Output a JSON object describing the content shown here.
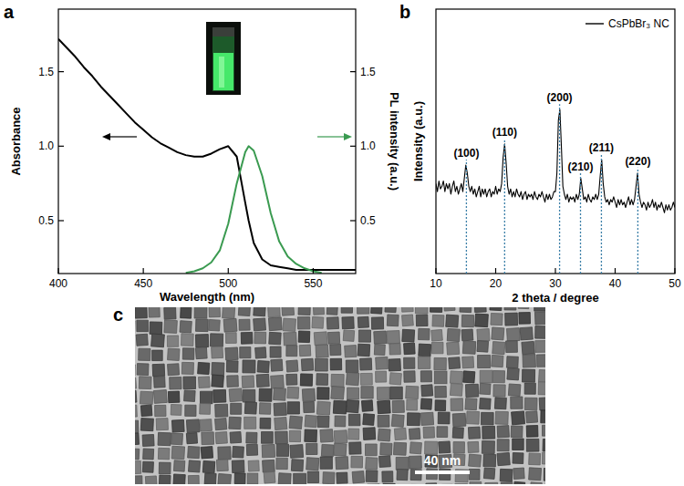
{
  "chart_data": [
    {
      "type": "line",
      "panel": "a",
      "x_label": "Wavelength (nm)",
      "y_label": "Absorbance",
      "y2_label": "PL intensity (a.u.)",
      "xlim": [
        400,
        575
      ],
      "xticks": [
        400,
        450,
        500,
        550
      ],
      "ylim": [
        0.145,
        1.92
      ],
      "yticks": [
        0.5,
        {
          "value": 1,
          "label": "1.0"
        },
        1.5
      ],
      "y2lim": [
        0.145,
        1.92
      ],
      "y2ticks": [
        0.5,
        {
          "value": 1,
          "label": "1.0"
        },
        1.5
      ],
      "x": [
        400,
        405,
        410,
        415,
        420,
        425,
        430,
        435,
        440,
        445,
        450,
        455,
        460,
        465,
        470,
        475,
        480,
        485,
        490,
        495,
        500,
        505,
        510,
        512,
        515,
        520,
        525,
        530,
        535,
        540,
        545,
        550,
        555,
        560,
        565,
        570,
        575
      ],
      "series": [
        {
          "color": "#000000",
          "values": [
            1.72,
            1.66,
            1.6,
            1.53,
            1.47,
            1.4,
            1.34,
            1.28,
            1.22,
            1.16,
            1.11,
            1.06,
            1.02,
            0.99,
            0.96,
            0.94,
            0.93,
            0.93,
            0.95,
            0.98,
            1.0,
            0.93,
            0.62,
            0.5,
            0.35,
            0.24,
            0.2,
            0.19,
            0.18,
            0.17,
            0.17,
            0.17,
            0.17,
            0.17,
            0.17,
            0.17,
            0.17
          ]
        },
        {
          "color": "#3a9a50",
          "axis": "y2",
          "values": [
            null,
            null,
            null,
            null,
            null,
            null,
            null,
            null,
            null,
            null,
            null,
            null,
            null,
            null,
            null,
            0.15,
            0.16,
            0.18,
            0.22,
            0.3,
            0.48,
            0.75,
            0.96,
            1.0,
            0.97,
            0.8,
            0.55,
            0.36,
            0.26,
            0.21,
            0.18,
            0.16,
            0.15,
            null,
            null,
            null,
            null
          ]
        }
      ]
    },
    {
      "type": "line",
      "panel": "b",
      "x_label": "2 theta / degree",
      "y_label": "Intensity (a.u.)",
      "xlim": [
        10,
        50
      ],
      "xticks": [
        10,
        20,
        30,
        40,
        50
      ],
      "ylim": [
        0,
        100
      ],
      "tick_labels": "x",
      "legend": "top-right",
      "x": [
        10,
        10.25,
        10.5,
        10.75,
        11,
        11.25,
        11.5,
        11.75,
        12,
        12.25,
        12.5,
        12.75,
        13,
        13.25,
        13.5,
        13.75,
        14,
        14.25,
        14.5,
        14.75,
        15,
        15.25,
        15.5,
        15.75,
        16,
        16.25,
        16.5,
        16.75,
        17,
        17.25,
        17.5,
        17.75,
        18,
        18.25,
        18.5,
        18.75,
        19,
        19.25,
        19.5,
        19.75,
        20,
        20.25,
        20.5,
        20.75,
        21,
        21.25,
        21.5,
        21.75,
        22,
        22.25,
        22.5,
        22.75,
        23,
        23.25,
        23.5,
        23.75,
        24,
        24.25,
        24.5,
        24.75,
        25,
        25.25,
        25.5,
        25.75,
        26,
        26.25,
        26.5,
        26.75,
        27,
        27.25,
        27.5,
        27.75,
        28,
        28.25,
        28.5,
        28.75,
        29,
        29.25,
        29.5,
        29.75,
        30,
        30.25,
        30.5,
        30.75,
        31,
        31.25,
        31.5,
        31.75,
        32,
        32.25,
        32.5,
        32.75,
        33,
        33.25,
        33.5,
        33.75,
        34,
        34.25,
        34.5,
        34.75,
        35,
        35.25,
        35.5,
        35.75,
        36,
        36.25,
        36.5,
        36.75,
        37,
        37.25,
        37.5,
        37.75,
        38,
        38.25,
        38.5,
        38.75,
        39,
        39.25,
        39.5,
        39.75,
        40,
        40.25,
        40.5,
        40.75,
        41,
        41.25,
        41.5,
        41.75,
        42,
        42.25,
        42.5,
        42.75,
        43,
        43.25,
        43.5,
        43.75,
        44,
        44.25,
        44.5,
        44.75,
        45,
        45.25,
        45.5,
        45.75,
        46,
        46.25,
        46.5,
        46.75,
        47,
        47.25,
        47.5,
        47.75,
        48,
        48.25,
        48.5,
        48.75,
        49,
        49.25,
        49.5,
        49.75,
        50
      ],
      "series": [
        {
          "name": "CsPbBr₃ NC",
          "color": "#000000",
          "values": [
            34,
            31,
            35,
            32,
            33,
            35,
            31,
            34,
            32,
            34,
            30,
            33,
            35,
            31,
            33,
            30,
            32,
            34,
            31,
            36,
            41,
            38,
            33,
            31,
            33,
            30,
            32,
            29,
            31,
            33,
            29,
            32,
            30,
            32,
            29,
            31,
            32,
            29,
            31,
            30,
            33,
            30,
            32,
            31,
            34,
            44,
            49,
            42,
            33,
            30,
            32,
            29,
            31,
            29,
            32,
            30,
            29,
            31,
            28,
            30,
            31,
            28,
            30,
            29,
            30,
            28,
            31,
            29,
            28,
            30,
            29,
            31,
            29,
            27,
            30,
            28,
            30,
            28,
            29,
            31,
            31,
            38,
            58,
            62,
            48,
            33,
            30,
            28,
            30,
            27,
            29,
            28,
            29,
            27,
            30,
            28,
            30,
            36,
            32,
            28,
            29,
            27,
            30,
            28,
            27,
            29,
            28,
            30,
            28,
            30,
            37,
            43,
            34,
            29,
            27,
            28,
            26,
            28,
            27,
            29,
            27,
            25,
            28,
            26,
            28,
            26,
            27,
            25,
            27,
            29,
            26,
            28,
            26,
            28,
            33,
            38,
            30,
            27,
            25,
            27,
            26,
            24,
            27,
            25,
            26,
            28,
            25,
            27,
            24,
            26,
            25,
            27,
            25,
            23,
            26,
            24,
            26,
            24,
            25,
            27,
            25
          ]
        }
      ],
      "annotations": [
        {
          "text": "(100)",
          "x": 15.1
        },
        {
          "text": "(110)",
          "x": 21.5
        },
        {
          "text": "(200)",
          "x": 30.7
        },
        {
          "text": "(210)",
          "x": 34.2
        },
        {
          "text": "(211)",
          "x": 37.7
        },
        {
          "text": "(220)",
          "x": 43.8
        }
      ]
    }
  ],
  "image": {
    "panel": "c",
    "scale_bar": "40 nm"
  }
}
